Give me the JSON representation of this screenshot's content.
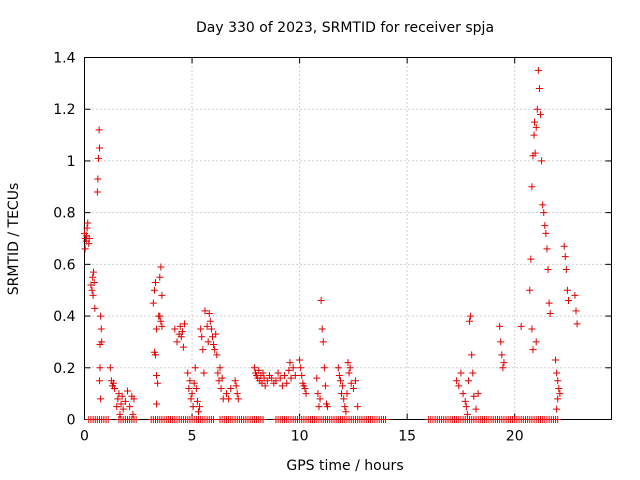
{
  "chart_data": {
    "type": "scatter",
    "title": "Day 330 of 2023, SRMTID for receiver spja",
    "xlabel": "GPS time / hours",
    "ylabel": "SRMTID / TECUs",
    "xlim": [
      0,
      24.5
    ],
    "ylim": [
      0,
      1.4
    ],
    "xticks": [
      0,
      5,
      10,
      15,
      20
    ],
    "yticks": [
      0,
      0.2,
      0.4,
      0.6,
      0.8,
      1,
      1.2,
      1.4
    ],
    "ytick_labels": [
      "0",
      "0.2",
      "0.4",
      "0.6",
      "0.8",
      "1",
      "1.2",
      "1.4"
    ],
    "grid": true,
    "marker": "+",
    "color": "#e00000",
    "series": [
      {
        "name": "SRMTID",
        "points": [
          [
            0.0,
            0.72
          ],
          [
            0.05,
            0.7
          ],
          [
            0.08,
            0.69
          ],
          [
            0.1,
            0.71
          ],
          [
            0.12,
            0.74
          ],
          [
            0.15,
            0.76
          ],
          [
            0.2,
            0.68
          ],
          [
            0.22,
            0.7
          ],
          [
            0.03,
            0.66
          ],
          [
            0.3,
            0.52
          ],
          [
            0.35,
            0.5
          ],
          [
            0.38,
            0.55
          ],
          [
            0.4,
            0.48
          ],
          [
            0.42,
            0.57
          ],
          [
            0.45,
            0.53
          ],
          [
            0.48,
            0.43
          ],
          [
            0.6,
            0.88
          ],
          [
            0.62,
            0.93
          ],
          [
            0.65,
            1.01
          ],
          [
            0.7,
            1.05
          ],
          [
            0.68,
            1.12
          ],
          [
            0.72,
            0.29
          ],
          [
            0.75,
            0.4
          ],
          [
            0.78,
            0.35
          ],
          [
            0.8,
            0.3
          ],
          [
            0.72,
            0.2
          ],
          [
            0.7,
            0.15
          ],
          [
            0.75,
            0.08
          ],
          [
            1.2,
            0.2
          ],
          [
            1.25,
            0.15
          ],
          [
            1.3,
            0.13
          ],
          [
            1.35,
            0.14
          ],
          [
            1.4,
            0.12
          ],
          [
            1.5,
            0.05
          ],
          [
            1.55,
            0.08
          ],
          [
            1.6,
            0.1
          ],
          [
            1.65,
            0.02
          ],
          [
            1.7,
            0.06
          ],
          [
            1.75,
            0.09
          ],
          [
            1.8,
            0.04
          ],
          [
            1.9,
            0.07
          ],
          [
            2.0,
            0.11
          ],
          [
            2.1,
            0.05
          ],
          [
            2.2,
            0.09
          ],
          [
            2.25,
            0.02
          ],
          [
            2.3,
            0.08
          ],
          [
            3.2,
            0.45
          ],
          [
            3.25,
            0.5
          ],
          [
            3.3,
            0.53
          ],
          [
            3.35,
            0.35
          ],
          [
            3.3,
            0.25
          ],
          [
            3.25,
            0.26
          ],
          [
            3.35,
            0.17
          ],
          [
            3.4,
            0.14
          ],
          [
            3.35,
            0.06
          ],
          [
            3.45,
            0.4
          ],
          [
            3.5,
            0.55
          ],
          [
            3.55,
            0.59
          ],
          [
            3.6,
            0.48
          ],
          [
            3.55,
            0.38
          ],
          [
            3.6,
            0.36
          ],
          [
            3.5,
            0.4
          ],
          [
            4.2,
            0.35
          ],
          [
            4.3,
            0.3
          ],
          [
            4.4,
            0.33
          ],
          [
            4.45,
            0.36
          ],
          [
            4.5,
            0.32
          ],
          [
            4.55,
            0.34
          ],
          [
            4.6,
            0.28
          ],
          [
            4.65,
            0.37
          ],
          [
            4.8,
            0.18
          ],
          [
            4.85,
            0.12
          ],
          [
            4.9,
            0.15
          ],
          [
            4.95,
            0.08
          ],
          [
            5.0,
            0.1
          ],
          [
            5.05,
            0.05
          ],
          [
            5.1,
            0.14
          ],
          [
            5.15,
            0.2
          ],
          [
            5.2,
            0.12
          ],
          [
            5.25,
            0.07
          ],
          [
            5.3,
            0.03
          ],
          [
            5.35,
            0.05
          ],
          [
            5.4,
            0.35
          ],
          [
            5.45,
            0.32
          ],
          [
            5.5,
            0.27
          ],
          [
            5.55,
            0.18
          ],
          [
            5.6,
            0.42
          ],
          [
            5.7,
            0.36
          ],
          [
            5.75,
            0.3
          ],
          [
            5.8,
            0.41
          ],
          [
            5.85,
            0.38
          ],
          [
            5.9,
            0.35
          ],
          [
            5.95,
            0.32
          ],
          [
            6.0,
            0.29
          ],
          [
            6.05,
            0.27
          ],
          [
            6.1,
            0.33
          ],
          [
            6.15,
            0.25
          ],
          [
            6.2,
            0.18
          ],
          [
            6.25,
            0.15
          ],
          [
            6.3,
            0.2
          ],
          [
            6.35,
            0.12
          ],
          [
            6.4,
            0.16
          ],
          [
            6.45,
            0.08
          ],
          [
            6.6,
            0.1
          ],
          [
            6.7,
            0.08
          ],
          [
            6.8,
            0.12
          ],
          [
            7.0,
            0.15
          ],
          [
            7.05,
            0.13
          ],
          [
            7.1,
            0.1
          ],
          [
            7.15,
            0.08
          ],
          [
            7.9,
            0.2
          ],
          [
            7.95,
            0.18
          ],
          [
            8.0,
            0.17
          ],
          [
            8.05,
            0.16
          ],
          [
            8.1,
            0.19
          ],
          [
            8.15,
            0.15
          ],
          [
            8.2,
            0.17
          ],
          [
            8.25,
            0.14
          ],
          [
            8.3,
            0.18
          ],
          [
            8.35,
            0.16
          ],
          [
            8.4,
            0.13
          ],
          [
            8.5,
            0.15
          ],
          [
            8.6,
            0.17
          ],
          [
            8.7,
            0.16
          ],
          [
            8.8,
            0.14
          ],
          [
            8.9,
            0.15
          ],
          [
            9.0,
            0.18
          ],
          [
            9.1,
            0.16
          ],
          [
            9.2,
            0.13
          ],
          [
            9.3,
            0.17
          ],
          [
            9.4,
            0.14
          ],
          [
            9.5,
            0.19
          ],
          [
            9.55,
            0.22
          ],
          [
            9.6,
            0.16
          ],
          [
            9.7,
            0.2
          ],
          [
            9.8,
            0.17
          ],
          [
            10.0,
            0.23
          ],
          [
            10.05,
            0.2
          ],
          [
            10.1,
            0.17
          ],
          [
            10.15,
            0.14
          ],
          [
            10.2,
            0.13
          ],
          [
            10.25,
            0.12
          ],
          [
            10.3,
            0.1
          ],
          [
            10.8,
            0.16
          ],
          [
            10.85,
            0.1
          ],
          [
            10.9,
            0.05
          ],
          [
            10.95,
            0.08
          ],
          [
            11.0,
            0.46
          ],
          [
            11.05,
            0.35
          ],
          [
            11.1,
            0.3
          ],
          [
            11.15,
            0.2
          ],
          [
            11.2,
            0.13
          ],
          [
            11.25,
            0.06
          ],
          [
            11.3,
            0.05
          ],
          [
            11.8,
            0.2
          ],
          [
            11.85,
            0.17
          ],
          [
            11.9,
            0.15
          ],
          [
            11.95,
            0.1
          ],
          [
            12.0,
            0.13
          ],
          [
            12.05,
            0.08
          ],
          [
            12.1,
            0.05
          ],
          [
            12.15,
            0.03
          ],
          [
            12.2,
            0.1
          ],
          [
            12.25,
            0.22
          ],
          [
            12.3,
            0.18
          ],
          [
            12.35,
            0.2
          ],
          [
            12.4,
            0.14
          ],
          [
            12.5,
            0.12
          ],
          [
            12.6,
            0.15
          ],
          [
            12.7,
            0.05
          ],
          [
            17.3,
            0.15
          ],
          [
            17.4,
            0.13
          ],
          [
            17.5,
            0.18
          ],
          [
            17.6,
            0.1
          ],
          [
            17.7,
            0.07
          ],
          [
            17.75,
            0.05
          ],
          [
            17.8,
            0.02
          ],
          [
            17.85,
            0.15
          ],
          [
            17.9,
            0.38
          ],
          [
            17.95,
            0.4
          ],
          [
            18.0,
            0.25
          ],
          [
            18.05,
            0.18
          ],
          [
            18.1,
            0.09
          ],
          [
            18.2,
            0.04
          ],
          [
            18.3,
            0.1
          ],
          [
            19.3,
            0.36
          ],
          [
            19.35,
            0.3
          ],
          [
            19.4,
            0.25
          ],
          [
            19.45,
            0.2
          ],
          [
            19.5,
            0.22
          ],
          [
            20.3,
            0.36
          ],
          [
            20.7,
            0.5
          ],
          [
            20.75,
            0.62
          ],
          [
            20.8,
            0.9
          ],
          [
            20.85,
            1.02
          ],
          [
            20.9,
            1.1
          ],
          [
            20.92,
            1.15
          ],
          [
            20.95,
            1.03
          ],
          [
            21.0,
            1.13
          ],
          [
            21.05,
            1.2
          ],
          [
            21.1,
            1.35
          ],
          [
            21.15,
            1.28
          ],
          [
            21.2,
            1.18
          ],
          [
            21.25,
            1.0
          ],
          [
            21.3,
            0.83
          ],
          [
            21.35,
            0.8
          ],
          [
            21.4,
            0.75
          ],
          [
            21.45,
            0.72
          ],
          [
            21.5,
            0.66
          ],
          [
            21.55,
            0.58
          ],
          [
            21.6,
            0.45
          ],
          [
            21.65,
            0.41
          ],
          [
            20.8,
            0.35
          ],
          [
            20.85,
            0.27
          ],
          [
            21.0,
            0.3
          ],
          [
            21.9,
            0.23
          ],
          [
            21.95,
            0.18
          ],
          [
            22.0,
            0.15
          ],
          [
            22.05,
            0.12
          ],
          [
            22.1,
            0.1
          ],
          [
            22.0,
            0.08
          ],
          [
            21.95,
            0.04
          ],
          [
            22.3,
            0.67
          ],
          [
            22.35,
            0.63
          ],
          [
            22.4,
            0.58
          ],
          [
            22.45,
            0.5
          ],
          [
            22.5,
            0.46
          ],
          [
            22.8,
            0.48
          ],
          [
            22.85,
            0.42
          ],
          [
            22.9,
            0.37
          ]
        ],
        "zero_runs": [
          [
            0.2,
            1.1
          ],
          [
            1.6,
            2.4
          ],
          [
            3.1,
            4.7
          ],
          [
            4.8,
            6.0
          ],
          [
            6.3,
            8.3
          ],
          [
            8.9,
            14.0
          ],
          [
            16.0,
            22.0
          ]
        ]
      }
    ]
  }
}
